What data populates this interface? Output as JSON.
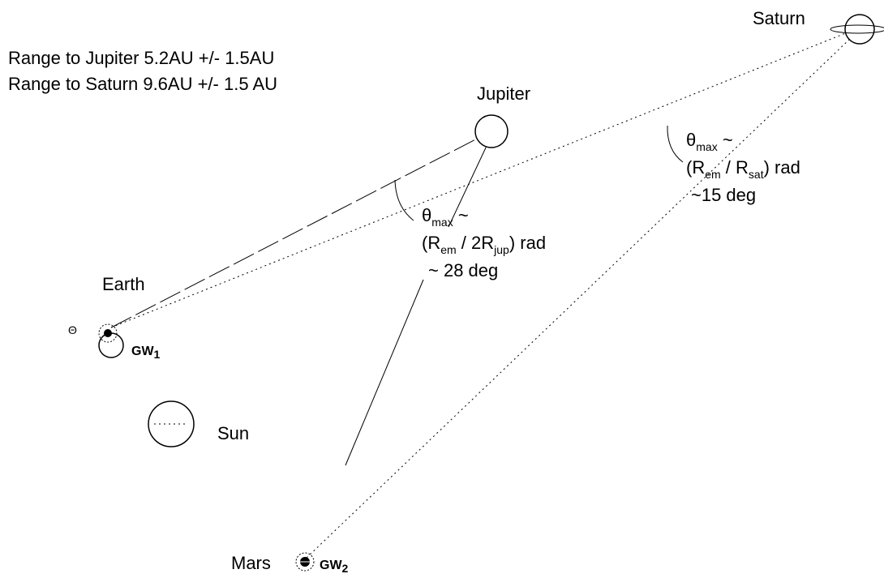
{
  "notes": [
    "Range to Jupiter 5.2AU +/- 1.5AU",
    "Range to Saturn 9.6AU +/- 1.5 AU"
  ],
  "bodies": {
    "saturn": "Saturn",
    "jupiter": "Jupiter",
    "earth": "Earth",
    "sun": "Sun",
    "mars": "Mars",
    "earth_symbol": "Θ"
  },
  "stations": [
    {
      "base": "GW",
      "sub": "1"
    },
    {
      "base": "GW",
      "sub": "2"
    }
  ],
  "jupiter_angle": {
    "symbol": "θ",
    "symbol_sub": "max",
    "symbol_tail": " ~",
    "formula": [
      "(R",
      "em",
      " / 2R",
      "jup",
      ") rad"
    ],
    "degrees": "~ 28 deg"
  },
  "saturn_angle": {
    "symbol": "θ",
    "symbol_sub": "max",
    "symbol_tail": " ~",
    "formula": [
      "(R",
      "em",
      " / R",
      "sat",
      ") rad"
    ],
    "degrees": "~15 deg"
  }
}
